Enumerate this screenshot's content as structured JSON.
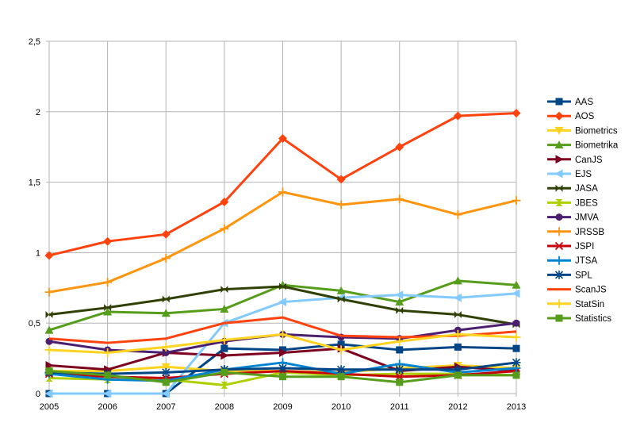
{
  "chart_data": {
    "type": "line",
    "title": "",
    "xlabel": "",
    "ylabel": "",
    "ylim": [
      0,
      2.5
    ],
    "grid": true,
    "legend_position": "right",
    "categories": [
      "2005",
      "2006",
      "2007",
      "2008",
      "2009",
      "2010",
      "2011",
      "2012",
      "2013"
    ],
    "y_ticks": [
      {
        "value": 0,
        "label": "0"
      },
      {
        "value": 0.5,
        "label": "0,5"
      },
      {
        "value": 1,
        "label": "1"
      },
      {
        "value": 1.5,
        "label": "1,5"
      },
      {
        "value": 2,
        "label": "2"
      },
      {
        "value": 2.5,
        "label": "2,5"
      }
    ],
    "series": [
      {
        "name": "AAS",
        "color": "#004586",
        "marker": "square",
        "values": [
          0.0,
          0.0,
          0.0,
          0.32,
          0.31,
          0.35,
          0.31,
          0.33,
          0.32
        ]
      },
      {
        "name": "AOS",
        "color": "#ff420e",
        "marker": "diamond",
        "values": [
          0.98,
          1.08,
          1.13,
          1.36,
          1.81,
          1.52,
          1.75,
          1.97,
          1.99
        ]
      },
      {
        "name": "Biometrics",
        "color": "#ffd320",
        "marker": "triangle-down",
        "values": [
          0.16,
          0.16,
          0.19,
          0.16,
          0.16,
          0.15,
          0.18,
          0.2,
          0.18
        ]
      },
      {
        "name": "Biometrika",
        "color": "#579d1c",
        "marker": "triangle-up",
        "values": [
          0.45,
          0.58,
          0.57,
          0.6,
          0.77,
          0.73,
          0.65,
          0.8,
          0.77
        ]
      },
      {
        "name": "CanJS",
        "color": "#7e0021",
        "marker": "triangle-right",
        "values": [
          0.2,
          0.17,
          0.29,
          0.27,
          0.29,
          0.32,
          0.16,
          0.19,
          0.16
        ]
      },
      {
        "name": "EJS",
        "color": "#83caff",
        "marker": "triangle-left",
        "values": [
          0.0,
          0.0,
          0.0,
          0.5,
          0.65,
          0.68,
          0.7,
          0.68,
          0.71
        ]
      },
      {
        "name": "JASA",
        "color": "#314004",
        "marker": "bowtie",
        "values": [
          0.56,
          0.61,
          0.67,
          0.74,
          0.76,
          0.67,
          0.59,
          0.56,
          0.49
        ]
      },
      {
        "name": "JBES",
        "color": "#aecf00",
        "marker": "hourglass",
        "values": [
          0.11,
          0.1,
          0.1,
          0.06,
          0.15,
          0.13,
          0.14,
          0.14,
          0.13
        ]
      },
      {
        "name": "JMVA",
        "color": "#4b1f6f",
        "marker": "circle",
        "values": [
          0.37,
          0.31,
          0.29,
          0.37,
          0.42,
          0.4,
          0.39,
          0.45,
          0.5
        ]
      },
      {
        "name": "JRSSB",
        "color": "#ff950e",
        "marker": "plus",
        "values": [
          0.72,
          0.79,
          0.96,
          1.17,
          1.43,
          1.34,
          1.38,
          1.27,
          1.37
        ]
      },
      {
        "name": "JSPI",
        "color": "#c5000b",
        "marker": "x",
        "values": [
          0.14,
          0.12,
          0.11,
          0.14,
          0.16,
          0.14,
          0.12,
          0.13,
          0.16
        ]
      },
      {
        "name": "JTSA",
        "color": "#0084d1",
        "marker": "plus",
        "values": [
          0.14,
          0.1,
          0.09,
          0.17,
          0.22,
          0.14,
          0.21,
          0.15,
          0.18
        ]
      },
      {
        "name": "SPL",
        "color": "#004586",
        "marker": "star",
        "values": [
          0.15,
          0.14,
          0.15,
          0.17,
          0.18,
          0.17,
          0.17,
          0.17,
          0.22
        ]
      },
      {
        "name": "ScanJS",
        "color": "#ff420e",
        "marker": "none",
        "values": [
          0.39,
          0.36,
          0.39,
          0.5,
          0.54,
          0.41,
          0.4,
          0.41,
          0.44
        ]
      },
      {
        "name": "StatSin",
        "color": "#ffd320",
        "marker": "plus",
        "values": [
          0.31,
          0.29,
          0.33,
          0.38,
          0.42,
          0.31,
          0.37,
          0.42,
          0.4
        ]
      },
      {
        "name": "Statistics",
        "color": "#579d1c",
        "marker": "square",
        "values": [
          0.16,
          0.13,
          0.08,
          0.15,
          0.12,
          0.12,
          0.08,
          0.13,
          0.13
        ]
      }
    ]
  }
}
